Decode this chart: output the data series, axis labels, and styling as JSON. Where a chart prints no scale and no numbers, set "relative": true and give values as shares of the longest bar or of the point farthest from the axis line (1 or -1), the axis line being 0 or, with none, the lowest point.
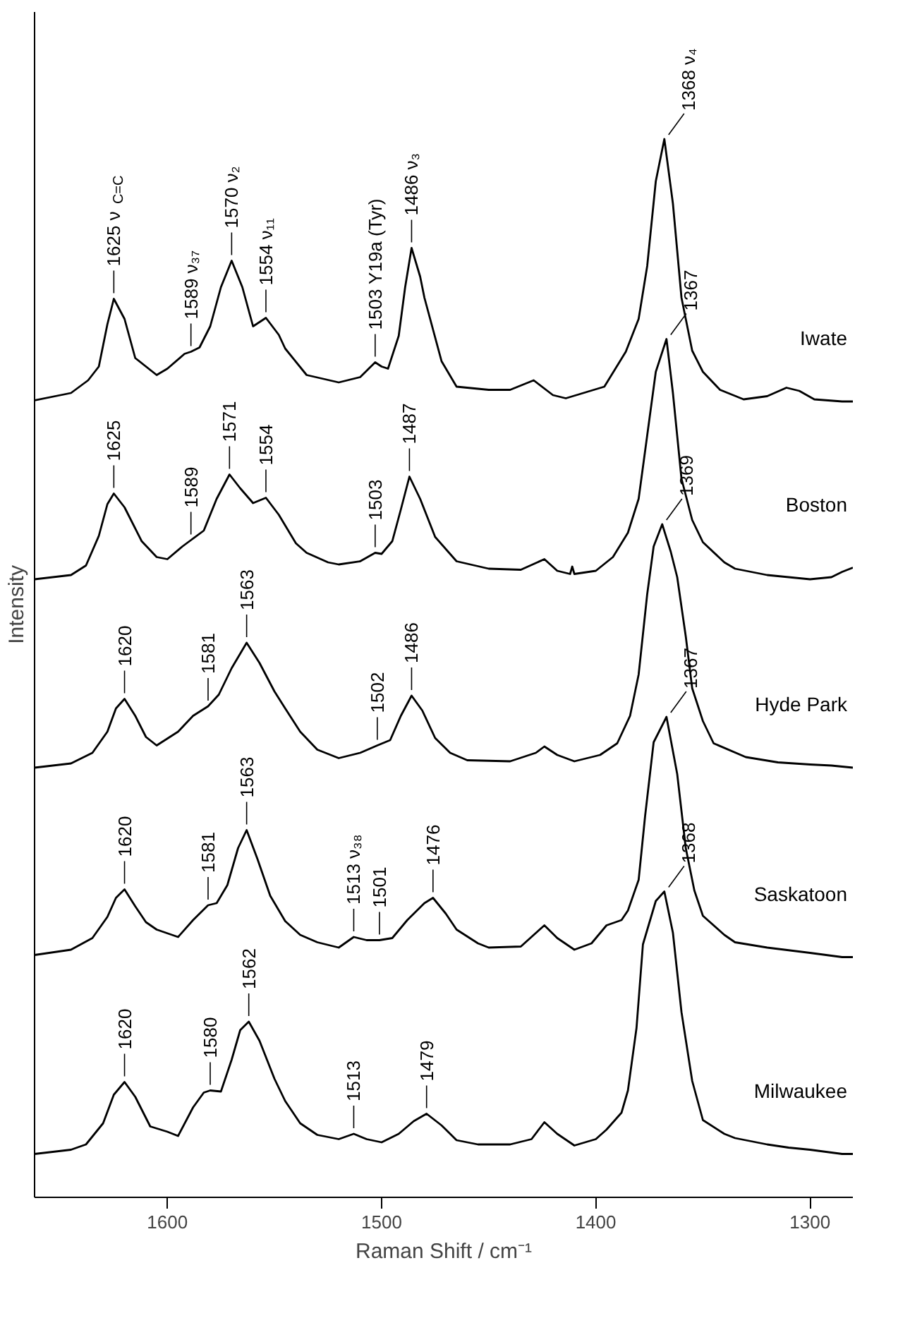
{
  "chart_data": {
    "type": "line",
    "xlabel": "Raman Shift / cm⁻¹",
    "ylabel": "Intensity",
    "xlim": [
      1662,
      1280
    ],
    "xticks": [
      1600,
      1500,
      1400,
      1300
    ],
    "relative": true,
    "tick_labels": "x",
    "series": [
      {
        "name": "Iwate",
        "color": "#000000",
        "x": [
          1662,
          1645,
          1637,
          1632,
          1628,
          1625,
          1620,
          1615,
          1605,
          1600,
          1592,
          1589,
          1585,
          1580,
          1575,
          1570,
          1565,
          1560,
          1554,
          1548,
          1545,
          1535,
          1520,
          1510,
          1503,
          1500,
          1497,
          1492,
          1489,
          1486,
          1482,
          1480,
          1472,
          1465,
          1450,
          1440,
          1429,
          1420,
          1414,
          1396,
          1386,
          1380,
          1376,
          1372,
          1368,
          1364,
          1360,
          1355,
          1350,
          1342,
          1331,
          1320,
          1311,
          1305,
          1298,
          1285,
          1280
        ],
        "values": [
          0.753,
          0.76,
          0.772,
          0.785,
          0.825,
          0.849,
          0.83,
          0.793,
          0.777,
          0.783,
          0.797,
          0.799,
          0.803,
          0.823,
          0.86,
          0.885,
          0.86,
          0.823,
          0.831,
          0.815,
          0.802,
          0.777,
          0.77,
          0.775,
          0.789,
          0.785,
          0.783,
          0.814,
          0.86,
          0.897,
          0.87,
          0.85,
          0.79,
          0.766,
          0.763,
          0.763,
          0.772,
          0.758,
          0.755,
          0.766,
          0.799,
          0.83,
          0.88,
          0.96,
          1.0,
          0.939,
          0.85,
          0.8,
          0.78,
          0.763,
          0.754,
          0.757,
          0.765,
          0.762,
          0.754,
          0.752,
          0.752
        ]
      },
      {
        "name": "Boston",
        "color": "#000000",
        "x": [
          1662,
          1645,
          1638,
          1632,
          1628,
          1625,
          1620,
          1612,
          1605,
          1600,
          1593,
          1589,
          1583,
          1577,
          1571,
          1566,
          1560,
          1554,
          1548,
          1540,
          1535,
          1525,
          1520,
          1510,
          1503,
          1500,
          1495,
          1491,
          1487,
          1482,
          1475,
          1465,
          1450,
          1435,
          1424,
          1418,
          1412,
          1411,
          1410,
          1400,
          1392,
          1385,
          1380,
          1376,
          1372,
          1367,
          1364,
          1360,
          1355,
          1350,
          1340,
          1335,
          1320,
          1300,
          1290,
          1285,
          1280
        ],
        "values": [
          0.584,
          0.588,
          0.597,
          0.625,
          0.655,
          0.665,
          0.652,
          0.62,
          0.605,
          0.603,
          0.615,
          0.621,
          0.63,
          0.66,
          0.683,
          0.67,
          0.656,
          0.661,
          0.645,
          0.618,
          0.609,
          0.6,
          0.598,
          0.601,
          0.609,
          0.608,
          0.62,
          0.65,
          0.681,
          0.66,
          0.624,
          0.601,
          0.594,
          0.593,
          0.603,
          0.592,
          0.589,
          0.596,
          0.589,
          0.592,
          0.605,
          0.628,
          0.66,
          0.72,
          0.78,
          0.811,
          0.76,
          0.679,
          0.64,
          0.619,
          0.6,
          0.594,
          0.588,
          0.584,
          0.586,
          0.591,
          0.595
        ]
      },
      {
        "name": "Hyde Park",
        "color": "#000000",
        "x": [
          1662,
          1645,
          1635,
          1628,
          1624,
          1620,
          1615,
          1610,
          1605,
          1595,
          1588,
          1581,
          1576,
          1570,
          1563,
          1557,
          1550,
          1545,
          1538,
          1530,
          1520,
          1510,
          1502,
          1496,
          1491,
          1486,
          1481,
          1475,
          1468,
          1460,
          1440,
          1428,
          1424,
          1418,
          1410,
          1398,
          1390,
          1384,
          1380,
          1376,
          1373,
          1369,
          1365,
          1362,
          1358,
          1355,
          1350,
          1345,
          1330,
          1315,
          1300,
          1290,
          1280
        ],
        "values": [
          0.406,
          0.41,
          0.42,
          0.44,
          0.462,
          0.471,
          0.455,
          0.435,
          0.427,
          0.44,
          0.455,
          0.464,
          0.475,
          0.5,
          0.524,
          0.505,
          0.478,
          0.462,
          0.44,
          0.423,
          0.415,
          0.42,
          0.427,
          0.432,
          0.455,
          0.474,
          0.46,
          0.434,
          0.42,
          0.413,
          0.412,
          0.42,
          0.426,
          0.418,
          0.412,
          0.418,
          0.429,
          0.455,
          0.494,
          0.57,
          0.615,
          0.636,
          0.61,
          0.586,
          0.53,
          0.481,
          0.45,
          0.429,
          0.416,
          0.411,
          0.409,
          0.408,
          0.406
        ]
      },
      {
        "name": "Saskatoon",
        "color": "#000000",
        "x": [
          1662,
          1645,
          1635,
          1628,
          1624,
          1620,
          1615,
          1610,
          1605,
          1595,
          1588,
          1581,
          1577,
          1572,
          1567,
          1563,
          1558,
          1552,
          1545,
          1538,
          1530,
          1520,
          1513,
          1507,
          1501,
          1495,
          1488,
          1480,
          1476,
          1470,
          1465,
          1455,
          1450,
          1435,
          1424,
          1418,
          1410,
          1402,
          1395,
          1388,
          1385,
          1380,
          1377,
          1373,
          1367,
          1362,
          1358,
          1354,
          1350,
          1340,
          1335,
          1320,
          1300,
          1285,
          1280
        ],
        "values": [
          0.229,
          0.234,
          0.245,
          0.265,
          0.283,
          0.291,
          0.275,
          0.26,
          0.253,
          0.246,
          0.262,
          0.276,
          0.278,
          0.295,
          0.33,
          0.347,
          0.32,
          0.285,
          0.261,
          0.248,
          0.241,
          0.236,
          0.246,
          0.243,
          0.243,
          0.245,
          0.262,
          0.278,
          0.283,
          0.268,
          0.253,
          0.24,
          0.236,
          0.237,
          0.257,
          0.245,
          0.234,
          0.24,
          0.257,
          0.262,
          0.271,
          0.3,
          0.36,
          0.43,
          0.454,
          0.4,
          0.33,
          0.29,
          0.266,
          0.248,
          0.241,
          0.236,
          0.231,
          0.227,
          0.227
        ]
      },
      {
        "name": "Milwaukee",
        "color": "#000000",
        "x": [
          1662,
          1645,
          1638,
          1630,
          1625,
          1620,
          1615,
          1608,
          1600,
          1595,
          1588,
          1583,
          1580,
          1575,
          1570,
          1566,
          1562,
          1557,
          1550,
          1545,
          1538,
          1530,
          1520,
          1513,
          1507,
          1500,
          1492,
          1485,
          1479,
          1472,
          1465,
          1455,
          1440,
          1430,
          1424,
          1418,
          1410,
          1400,
          1395,
          1388,
          1385,
          1381,
          1378,
          1372,
          1368,
          1364,
          1360,
          1355,
          1350,
          1340,
          1335,
          1320,
          1310,
          1300,
          1285,
          1280
        ],
        "values": [
          0.041,
          0.045,
          0.05,
          0.07,
          0.097,
          0.109,
          0.095,
          0.067,
          0.062,
          0.058,
          0.085,
          0.099,
          0.101,
          0.1,
          0.13,
          0.158,
          0.166,
          0.148,
          0.112,
          0.091,
          0.07,
          0.059,
          0.055,
          0.06,
          0.055,
          0.052,
          0.06,
          0.072,
          0.079,
          0.068,
          0.054,
          0.05,
          0.05,
          0.055,
          0.071,
          0.06,
          0.049,
          0.055,
          0.064,
          0.08,
          0.101,
          0.16,
          0.239,
          0.28,
          0.289,
          0.25,
          0.175,
          0.11,
          0.073,
          0.06,
          0.056,
          0.05,
          0.047,
          0.045,
          0.041,
          0.041
        ]
      }
    ],
    "annotations": [
      {
        "text": "1625  ν$_{C=C}$",
        "x": 1625,
        "y": 0.849
      },
      {
        "text": "1589  ν₃₇",
        "x": 1589,
        "y": 0.799
      },
      {
        "text": "1570  ν₂",
        "x": 1570,
        "y": 0.885
      },
      {
        "text": "1554  ν₁₁",
        "x": 1554,
        "y": 0.831
      },
      {
        "text": "1503  Y19a (Tyr)",
        "x": 1503,
        "y": 0.789
      },
      {
        "text": "1486  ν₃",
        "x": 1486,
        "y": 0.897
      },
      {
        "text": "1368  ν₄",
        "x": 1368,
        "y": 1.0
      },
      {
        "text": "1625",
        "x": 1625,
        "y": 0.665
      },
      {
        "text": "1589",
        "x": 1589,
        "y": 0.621
      },
      {
        "text": "1571",
        "x": 1571,
        "y": 0.683
      },
      {
        "text": "1554",
        "x": 1554,
        "y": 0.661
      },
      {
        "text": "1503",
        "x": 1503,
        "y": 0.609
      },
      {
        "text": "1487",
        "x": 1487,
        "y": 0.681
      },
      {
        "text": "1367",
        "x": 1367,
        "y": 0.811
      },
      {
        "text": "1620",
        "x": 1620,
        "y": 0.471
      },
      {
        "text": "1581",
        "x": 1581,
        "y": 0.464
      },
      {
        "text": "1563",
        "x": 1563,
        "y": 0.524
      },
      {
        "text": "1502",
        "x": 1502,
        "y": 0.427
      },
      {
        "text": "1486",
        "x": 1486,
        "y": 0.474
      },
      {
        "text": "1369",
        "x": 1369,
        "y": 0.636
      },
      {
        "text": "1620",
        "x": 1620,
        "y": 0.291
      },
      {
        "text": "1581",
        "x": 1581,
        "y": 0.276
      },
      {
        "text": "1563",
        "x": 1563,
        "y": 0.347
      },
      {
        "text": "1513  ν₃₈",
        "x": 1513,
        "y": 0.246
      },
      {
        "text": "1501",
        "x": 1501,
        "y": 0.243
      },
      {
        "text": "1476",
        "x": 1476,
        "y": 0.283
      },
      {
        "text": "1367",
        "x": 1367,
        "y": 0.454
      },
      {
        "text": "1620",
        "x": 1620,
        "y": 0.109
      },
      {
        "text": "1580",
        "x": 1580,
        "y": 0.101
      },
      {
        "text": "1562",
        "x": 1562,
        "y": 0.166
      },
      {
        "text": "1513",
        "x": 1513,
        "y": 0.06
      },
      {
        "text": "1479",
        "x": 1479,
        "y": 0.079
      },
      {
        "text": "1368",
        "x": 1368,
        "y": 0.289
      }
    ]
  }
}
